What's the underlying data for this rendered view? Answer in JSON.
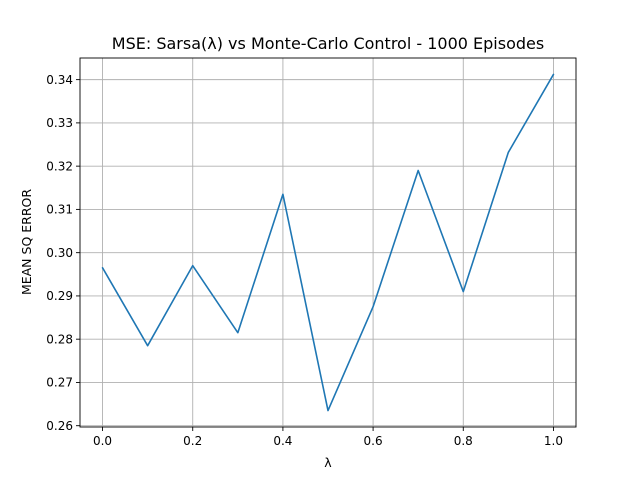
{
  "chart_data": {
    "type": "line",
    "title": "MSE: Sarsa(λ) vs Monte-Carlo Control - 1000 Episodes",
    "xlabel": "λ",
    "ylabel": "MEAN SQ ERROR",
    "x": [
      0.0,
      0.1,
      0.2,
      0.3,
      0.4,
      0.5,
      0.6,
      0.7,
      0.8,
      0.9,
      1.0
    ],
    "series": [
      {
        "values": [
          0.2965,
          0.2785,
          0.297,
          0.2815,
          0.3135,
          0.2635,
          0.2875,
          0.319,
          0.291,
          0.3232,
          0.3412
        ],
        "color": "#1f77b4"
      }
    ],
    "xlim": [
      -0.05,
      1.05
    ],
    "ylim": [
      0.2597,
      0.345
    ],
    "xticks": [
      0.0,
      0.2,
      0.4,
      0.6,
      0.8,
      1.0
    ],
    "xtick_labels": [
      "0.0",
      "0.2",
      "0.4",
      "0.6",
      "0.8",
      "1.0"
    ],
    "yticks": [
      0.26,
      0.27,
      0.28,
      0.29,
      0.3,
      0.31,
      0.32,
      0.33,
      0.34
    ],
    "ytick_labels": [
      "0.26",
      "0.27",
      "0.28",
      "0.29",
      "0.30",
      "0.31",
      "0.32",
      "0.33",
      "0.34"
    ],
    "grid": true
  }
}
